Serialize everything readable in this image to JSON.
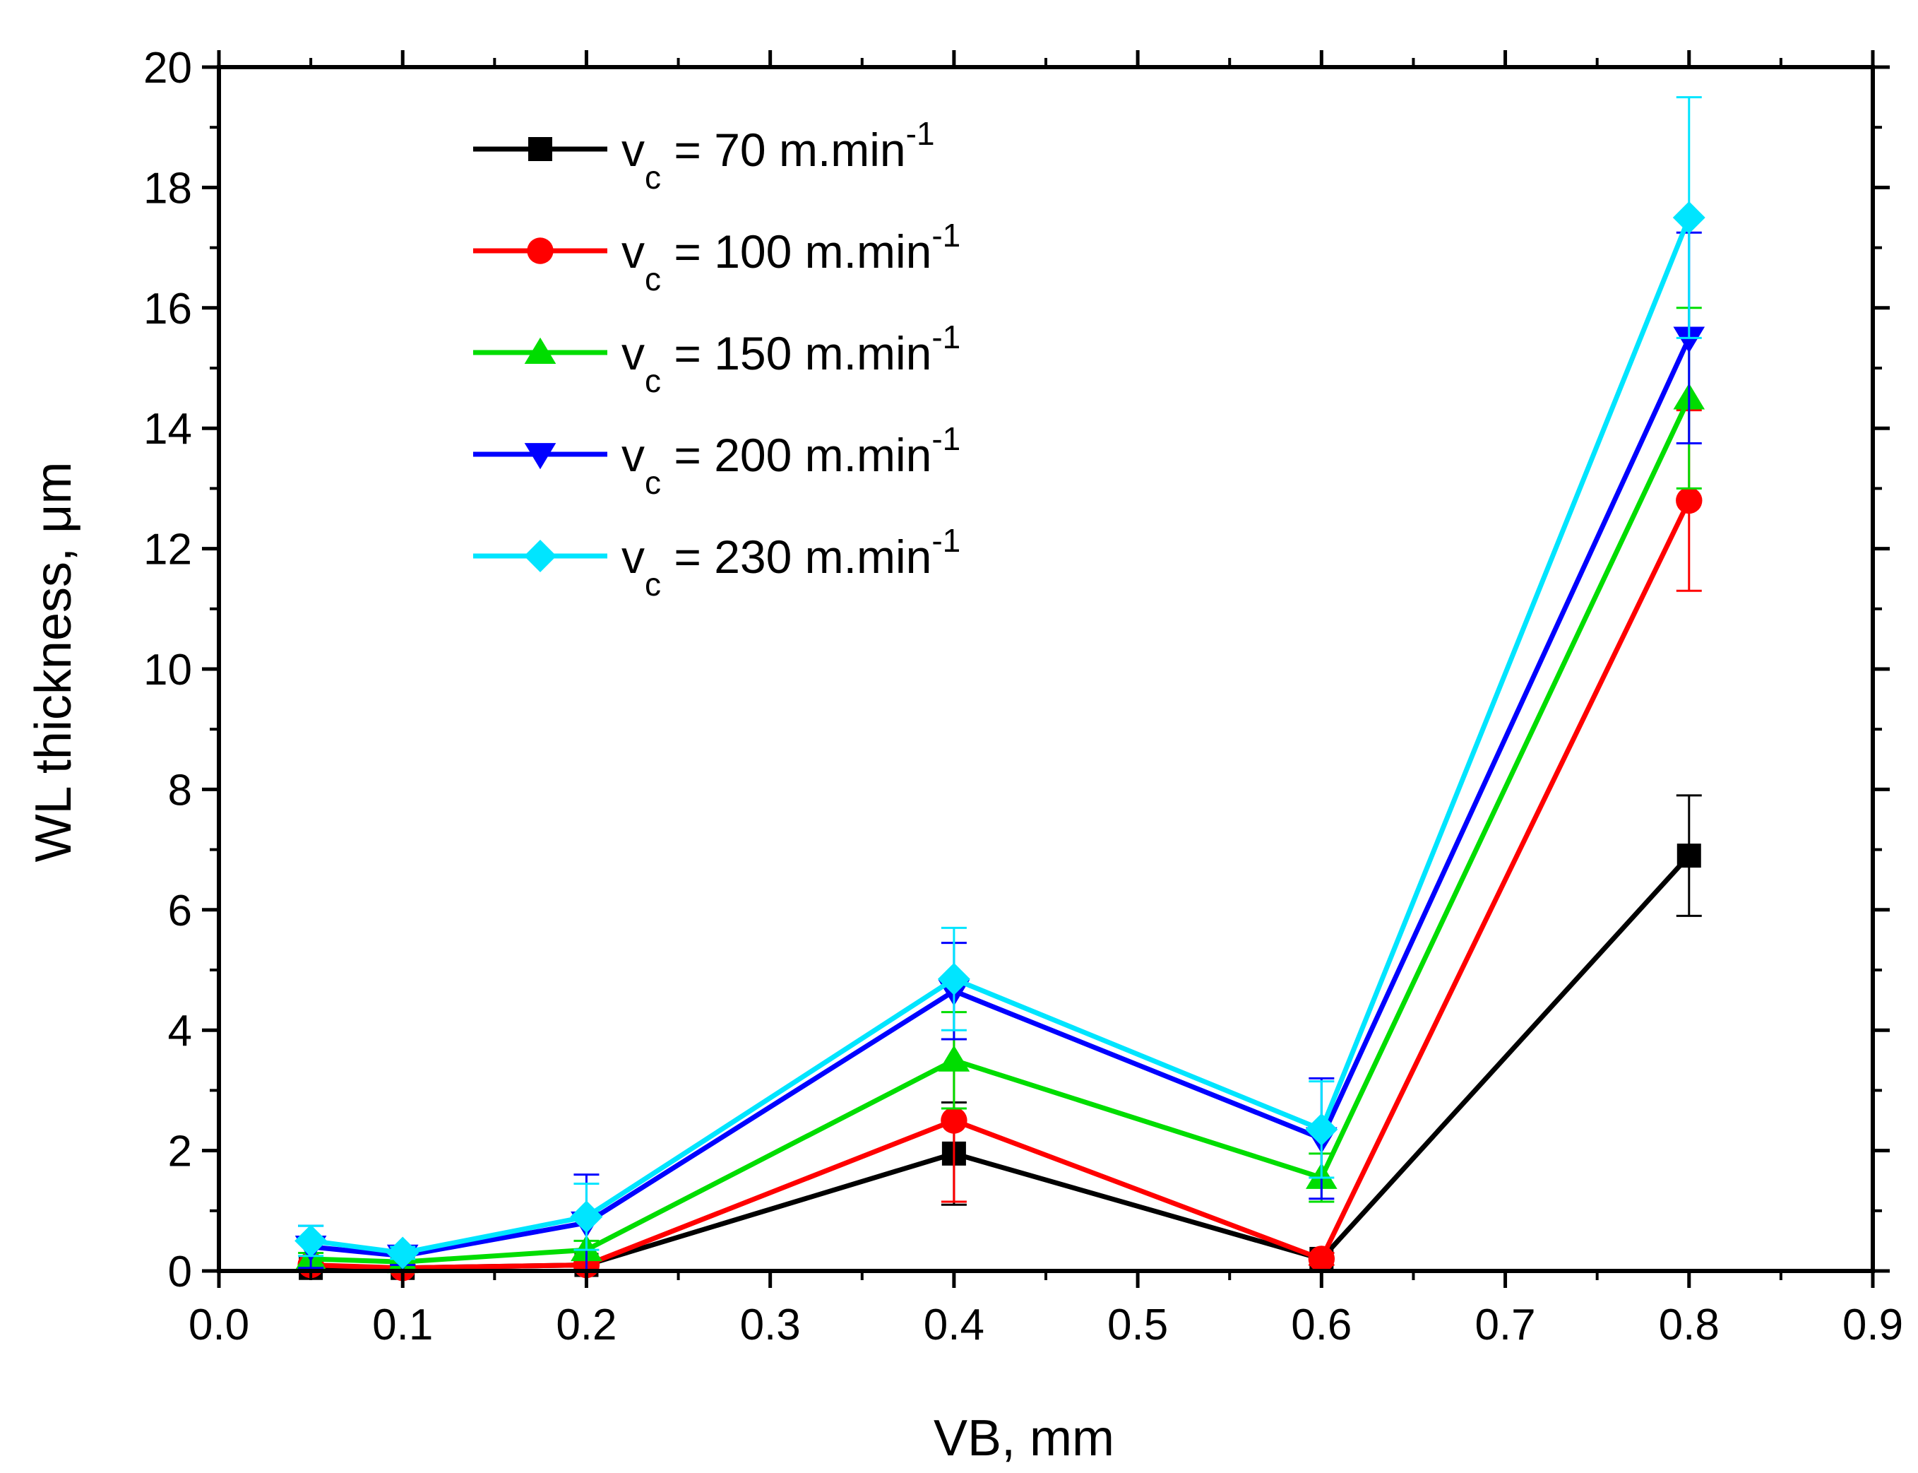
{
  "chart_data": {
    "type": "line",
    "title": "",
    "xlabel": "VB, mm",
    "ylabel": "WL thickness, μm",
    "xlim": [
      0.0,
      0.9
    ],
    "ylim": [
      0,
      20
    ],
    "x_ticks": [
      "0.0",
      "0.1",
      "0.2",
      "0.3",
      "0.4",
      "0.5",
      "0.6",
      "0.7",
      "0.8",
      "0.9"
    ],
    "y_ticks": [
      "0",
      "2",
      "4",
      "6",
      "8",
      "10",
      "12",
      "14",
      "16",
      "18",
      "20"
    ],
    "grid": false,
    "legend_position": "top-left",
    "x": [
      0.05,
      0.1,
      0.2,
      0.4,
      0.6,
      0.8
    ],
    "series": [
      {
        "name": "vc = 70 m.min-1",
        "legend_prefix": "v",
        "legend_sub": "c",
        "legend_main": " = 70 m.min",
        "legend_sup": "-1",
        "color": "#000000",
        "marker": "square",
        "values": [
          0.05,
          0.05,
          0.1,
          1.95,
          0.2,
          6.9
        ],
        "errors": [
          0.05,
          0.05,
          0.05,
          0.85,
          0.1,
          1.0
        ]
      },
      {
        "name": "vc = 100 m.min-1",
        "legend_prefix": "v",
        "legend_sub": "c",
        "legend_main": " = 100 m.min",
        "legend_sup": "-1",
        "color": "#ff0000",
        "marker": "circle",
        "values": [
          0.1,
          0.05,
          0.1,
          2.5,
          0.2,
          12.8
        ],
        "errors": [
          0.05,
          0.05,
          0.05,
          1.35,
          0.1,
          1.5
        ]
      },
      {
        "name": "vc = 150 m.min-1",
        "legend_prefix": "v",
        "legend_sub": "c",
        "legend_main": " = 150 m.min",
        "legend_sup": "-1",
        "color": "#00dd00",
        "marker": "triangle-up",
        "values": [
          0.2,
          0.15,
          0.35,
          3.5,
          1.55,
          14.5
        ],
        "errors": [
          0.1,
          0.1,
          0.15,
          0.8,
          0.4,
          1.5
        ]
      },
      {
        "name": "vc = 200 m.min-1",
        "legend_prefix": "v",
        "legend_sub": "c",
        "legend_main": " = 200 m.min",
        "legend_sup": "-1",
        "color": "#0000ff",
        "marker": "triangle-down",
        "values": [
          0.4,
          0.25,
          0.8,
          4.65,
          2.2,
          15.5
        ],
        "errors": [
          0.35,
          0.15,
          0.8,
          0.8,
          1.0,
          1.75
        ]
      },
      {
        "name": "vc = 230 m.min-1",
        "legend_prefix": "v",
        "legend_sub": "c",
        "legend_main": " = 230 m.min",
        "legend_sup": "-1",
        "color": "#00e5ff",
        "marker": "diamond",
        "values": [
          0.5,
          0.3,
          0.9,
          4.85,
          2.35,
          17.5
        ],
        "errors": [
          0.25,
          0.1,
          0.55,
          0.85,
          0.8,
          2.0
        ]
      }
    ]
  }
}
